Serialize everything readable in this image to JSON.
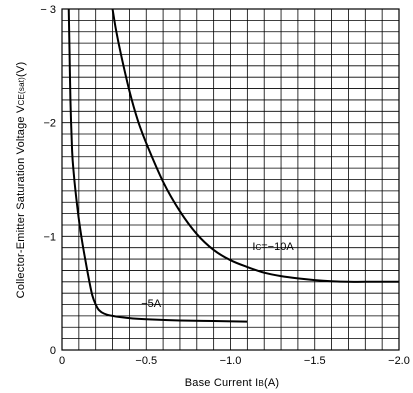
{
  "chart_data": {
    "type": "line",
    "title": "",
    "xlabel": {
      "main": "Base Current I",
      "sub": "B",
      "unit": "(A)"
    },
    "ylabel": {
      "main": "Collector-Emitter Saturation Voltage V",
      "sub": "CE(sat)",
      "unit": "(V)"
    },
    "xlim": [
      0,
      -2.0
    ],
    "ylim": [
      0,
      -3
    ],
    "x_ticks": [
      {
        "value": 0,
        "label": "0"
      },
      {
        "value": -0.5,
        "label": "−0.5"
      },
      {
        "value": -1.0,
        "label": "−1.0"
      },
      {
        "value": -1.5,
        "label": "−1.5"
      },
      {
        "value": -2.0,
        "label": "−2.0"
      }
    ],
    "y_ticks": [
      {
        "value": 0,
        "label": "0"
      },
      {
        "value": -1,
        "label": "−1"
      },
      {
        "value": -2,
        "label": "−2"
      },
      {
        "value": -3,
        "label": "− 3"
      }
    ],
    "grid": true,
    "series": [
      {
        "name": "−5A",
        "label": {
          "text": "−5A",
          "at": [
            -0.47,
            -0.38
          ]
        },
        "x": [
          -0.04,
          -0.045,
          -0.05,
          -0.06,
          -0.07,
          -0.08,
          -0.1,
          -0.12,
          -0.14,
          -0.16,
          -0.18,
          -0.2,
          -0.22,
          -0.25,
          -0.3,
          -0.4,
          -0.5,
          -0.7,
          -0.9,
          -1.1
        ],
        "y": [
          -3.0,
          -2.6,
          -2.2,
          -1.75,
          -1.55,
          -1.4,
          -1.15,
          -0.95,
          -0.78,
          -0.62,
          -0.48,
          -0.4,
          -0.35,
          -0.32,
          -0.3,
          -0.28,
          -0.27,
          -0.26,
          -0.255,
          -0.25
        ]
      },
      {
        "name": "I C=−10A",
        "label": {
          "text": "I",
          "sub": "C",
          "rest": "=−10A",
          "at": [
            -1.13,
            -0.88
          ]
        },
        "x": [
          -0.3,
          -0.32,
          -0.35,
          -0.4,
          -0.45,
          -0.5,
          -0.6,
          -0.7,
          -0.8,
          -0.9,
          -1.0,
          -1.1,
          -1.2,
          -1.3,
          -1.4,
          -1.5,
          -1.6,
          -1.7,
          -1.8,
          -2.0
        ],
        "y": [
          -3.0,
          -2.82,
          -2.6,
          -2.28,
          -2.02,
          -1.82,
          -1.48,
          -1.22,
          -1.02,
          -0.88,
          -0.79,
          -0.73,
          -0.68,
          -0.65,
          -0.63,
          -0.615,
          -0.605,
          -0.6,
          -0.6,
          -0.6
        ]
      }
    ]
  }
}
